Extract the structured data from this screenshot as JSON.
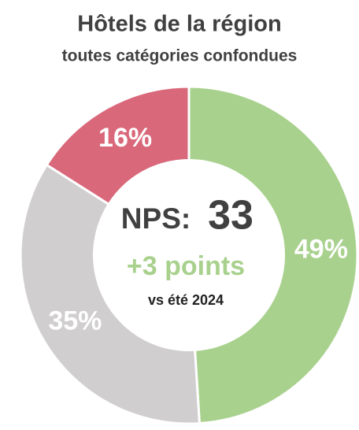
{
  "chart_data": {
    "type": "pie",
    "donut": true,
    "title": "Hôtels de la région",
    "subtitle": "toutes catégories confondues",
    "values": [
      49,
      35,
      16
    ],
    "value_labels": [
      "49%",
      "35%",
      "16%"
    ],
    "colors": [
      "#a9d18e",
      "#d0cece",
      "#d9687a"
    ],
    "center": {
      "label": "NPS:",
      "value": 33,
      "change": "+3 points",
      "note": "vs été 2024"
    }
  }
}
